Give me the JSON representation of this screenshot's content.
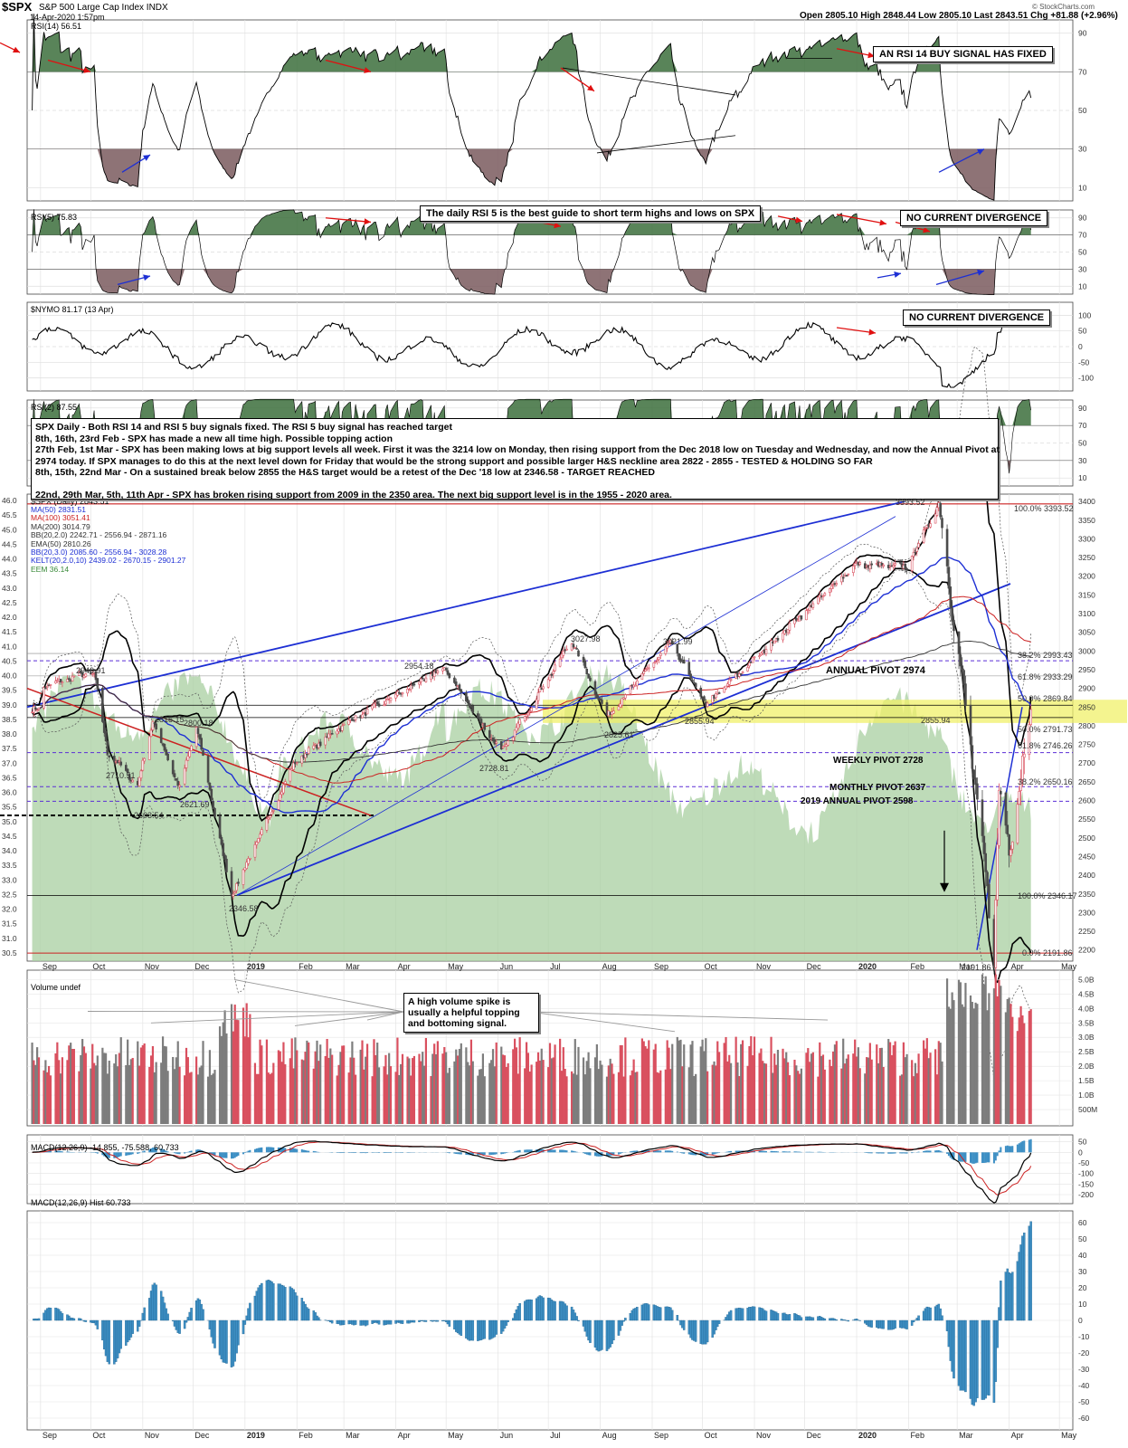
{
  "header": {
    "symbol": "$SPX",
    "name": "S&P 500 Large Cap Index",
    "exchange": "INDX",
    "date": "14-Apr-2020 1:57pm",
    "quote": "Open 2805.10  High 2848.44  Low 2805.10  Last 2843.51  Chg +81.88 (+2.96%)",
    "brand": "© StockCharts.com"
  },
  "colors": {
    "up": "#d9505f",
    "down": "#4a4a4a",
    "rsi_hi": "#3c6e3c",
    "rsi_lo": "#7a5a5e",
    "ema_fill": "#a8cfa0",
    "macd_hist": "#3d8fc4",
    "highlight": "#f0f06a",
    "channel": "#1d2fd4",
    "pivot": "#5b2fd6"
  },
  "panels": {
    "rsi14": {
      "label": "RSI(14) 56.51"
    },
    "rsi5": {
      "label": "RSI(5) 75.83"
    },
    "nymo": {
      "label": "$NYMO 81.17 (13 Apr)"
    },
    "rsi2": {
      "label": "RSI(2) 87.55"
    },
    "price": {
      "label": "$SPX (Daily) 2843.51",
      "overlays": [
        "MA(50) 2831.51",
        "MA(100) 3051.41",
        "MA(200) 3014.79",
        "BB(20,2.0) 2242.71 - 2556.94 - 2871.16",
        "EMA(50) 2810.26",
        "BB(20,3.0) 2085.60 - 2556.94 - 3028.28",
        "KELT(20,2.0,10) 2439.02 - 2670.15 - 2901.27",
        "EEM 36.14"
      ]
    },
    "volume": {
      "label": "Volume undef"
    },
    "macd": {
      "label": "MACD(12,26,9) -14.855, -75.588, 60.733"
    },
    "hist": {
      "label": "MACD(12,26,9) Hist 60.733"
    }
  },
  "notes": {
    "rsi14_signal": "AN RSI 14 BUY SIGNAL HAS FIXED",
    "rsi5_guide": "The daily RSI 5 is the best guide to short term highs and lows on SPX",
    "rsi5_div": "NO CURRENT DIVERGENCE",
    "nymo_div": "NO CURRENT DIVERGENCE",
    "volume_note": "A high volume spike is usually a helpful topping and bottoming signal.",
    "commentary": [
      "SPX Daily - Both RSI 14 and RSI 5 buy signals fixed. The RSI 5 buy signal has reached target",
      "8th, 16th, 23rd Feb - SPX has made a new all time high. Possible topping action",
      "27th Feb, 1st Mar - SPX has been making lows at big support levels all week. First it was the 3214 low on Monday, then rising support from the Dec 2018 low on Tuesday and Wednesday, and now the Annual Pivot at",
      "2974 today. If SPX manages to do this at the next level down for Friday that would be the strong support and possible larger H&S neckline area 2822 - 2855 - TESTED & HOLDING SO FAR",
      "8th, 15th, 22nd Mar - On a sustained break below 2855 the H&S target would be a retest of the Dec '18 low at 2346.58 - TARGET REACHED",
      "",
      "22nd, 29th Mar, 5th, 11th Apr - SPX has broken rising support from 2009 in the 2350 area. The next big support level is in the 1955 - 2020 area."
    ]
  },
  "pivots": {
    "annual": "ANNUAL PIVOT 2974",
    "weekly": "WEEKLY PIVOT 2728",
    "monthly": "MONTHLY PIVOT 2637",
    "annual2019": "2019 ANNUAL PIVOT 2598"
  },
  "price_labels": {
    "p2940": "2940.91",
    "p2815": "2815.15",
    "p2800": "2800.18",
    "p2710": "2710.51",
    "p2603": "2603.54",
    "p2621": "2621.69",
    "p2346": "2346.58",
    "p2954": "2954.18",
    "p2728": "2728.81",
    "p3027": "3027.98",
    "p3021": "3021.99",
    "p2825": "2825.61",
    "p2855": "2855.94",
    "p2855b": "2855.94",
    "p3393": "3393.52",
    "p2191": "2191.86"
  },
  "fib_labels": [
    "100.0% 3393.52",
    "38.2% 2993.43",
    "61.8% 2933.29",
    "50.0% 2869.84",
    "50.0% 2791.73",
    "61.8% 2746.26",
    "38.2% 2650.16",
    "100.0% 2346.17",
    "0.0% 2191.86"
  ],
  "chart_data": {
    "type": "line",
    "title": "$SPX S&P 500 Large Cap Index INDX",
    "x_ticks": [
      "Sep",
      "Oct",
      "Nov",
      "Dec",
      "2019",
      "Feb",
      "Mar",
      "Apr",
      "May",
      "Jun",
      "Jul",
      "Aug",
      "Sep",
      "Oct",
      "Nov",
      "Dec",
      "2020",
      "Feb",
      "Mar",
      "Apr",
      "May"
    ],
    "price_axis": [
      2200,
      2250,
      2300,
      2350,
      2400,
      2450,
      2500,
      2550,
      2600,
      2650,
      2700,
      2750,
      2800,
      2850,
      2900,
      2950,
      3000,
      3050,
      3100,
      3150,
      3200,
      3250,
      3300,
      3350,
      3400
    ],
    "eem_axis": [
      30.5,
      31.0,
      31.5,
      32.0,
      32.5,
      33.0,
      33.5,
      34.0,
      34.5,
      35.0,
      35.5,
      36.0,
      36.5,
      37.0,
      37.5,
      38.0,
      38.5,
      39.0,
      39.5,
      40.0,
      40.5,
      41.0,
      41.5,
      42.0,
      42.5,
      43.0,
      43.5,
      44.0,
      44.5,
      45.0,
      45.5,
      46.0
    ],
    "rsi14_axis": [
      90,
      70,
      50,
      30,
      10
    ],
    "rsi5_axis": [
      90,
      70,
      50,
      30,
      10
    ],
    "nymo_axis": [
      100,
      50,
      0,
      -50,
      -100
    ],
    "rsi2_axis": [
      90,
      70,
      50,
      30,
      10
    ],
    "volume_axis": [
      "5.0B",
      "4.5B",
      "4.0B",
      "3.5B",
      "3.0B",
      "2.5B",
      "2.0B",
      "1.5B",
      "1.0B",
      "500M"
    ],
    "macd_axis": [
      50,
      0,
      -50,
      -100,
      -150,
      -200
    ],
    "hist_axis": [
      60,
      50,
      40,
      30,
      20,
      10,
      0,
      -10,
      -20,
      -30,
      -40,
      -50,
      -60
    ],
    "price_keypoints": [
      [
        "2018-09-01",
        2900
      ],
      [
        "2018-09-20",
        2930
      ],
      [
        "2018-10-03",
        2940.91
      ],
      [
        "2018-10-11",
        2730
      ],
      [
        "2018-10-29",
        2641
      ],
      [
        "2018-11-07",
        2813
      ],
      [
        "2018-11-23",
        2632
      ],
      [
        "2018-12-03",
        2800.18
      ],
      [
        "2018-12-24",
        2346.58
      ],
      [
        "2019-01-31",
        2704
      ],
      [
        "2019-03-01",
        2803
      ],
      [
        "2019-04-30",
        2954.18
      ],
      [
        "2019-06-03",
        2728.81
      ],
      [
        "2019-07-15",
        3027.98
      ],
      [
        "2019-08-05",
        2825.61
      ],
      [
        "2019-09-12",
        3021.99
      ],
      [
        "2019-10-03",
        2855.94
      ],
      [
        "2019-12-31",
        3230
      ],
      [
        "2020-01-31",
        3225
      ],
      [
        "2020-02-19",
        3393.52
      ],
      [
        "2020-03-09",
        2746
      ],
      [
        "2020-03-23",
        2191.86
      ],
      [
        "2020-03-26",
        2630
      ],
      [
        "2020-04-01",
        2470
      ],
      [
        "2020-04-14",
        2843.51
      ]
    ],
    "pivots": {
      "annual": 2974,
      "weekly": 2728,
      "monthly": 2637,
      "annual_2019": 2598
    },
    "support_zone": [
      2822,
      2855
    ],
    "fib_levels": {
      "100.0%": 3393.52,
      "38.2%": 2993.43,
      "61.8%": 2933.29,
      "50.0%": 2869.84,
      "50.0% (lower)": 2791.73,
      "61.8% (lower)": 2746.26,
      "38.2% (lower)": 2650.16,
      "100.0% (lower)": 2346.17,
      "0.0%": 2191.86
    }
  }
}
